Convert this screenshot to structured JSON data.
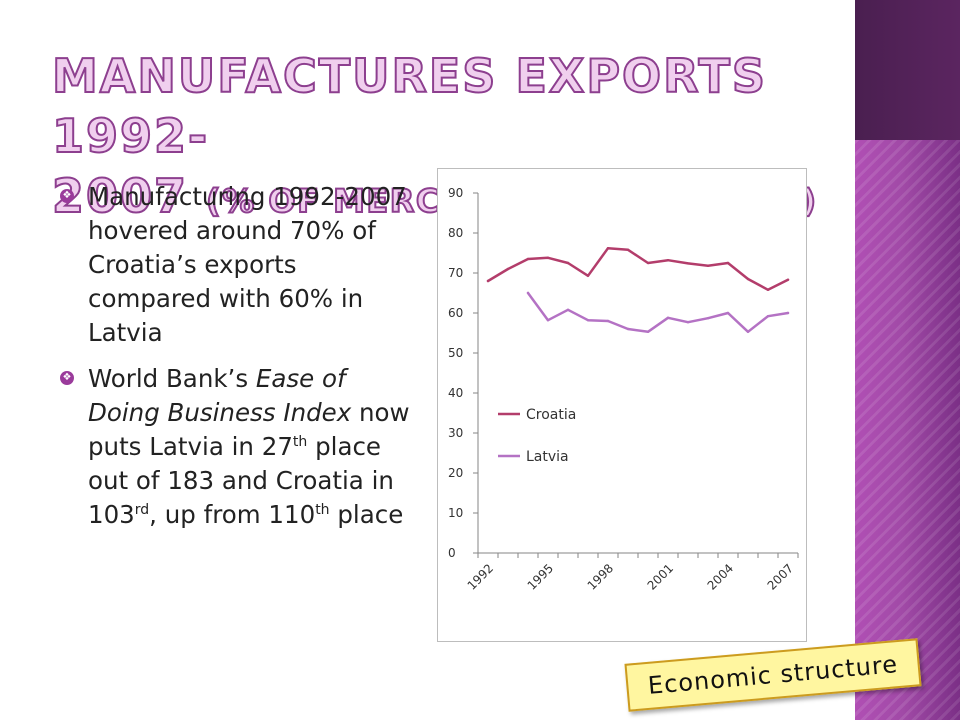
{
  "slide": {
    "title_line1": "Manufactures exports 1992-",
    "title_line2_year": "2007",
    "title_line2_paren": "(% of merchandise exports)",
    "bullets": [
      {
        "text": "Manufacturing 1992-2007 hovered around 70% of Croatia’s exports compared with 60% in Latvia"
      },
      {
        "part1": "World Bank’s ",
        "italic": "Ease of Doing Business Index",
        "part2": " now puts Latvia in 27",
        "sup1": "th",
        "part3": " place out of 183 and Croatia in 103",
        "sup2": "rd",
        "part4": ", up from 110",
        "sup3": "th",
        "part5": " place"
      }
    ],
    "badge": "Economic structure",
    "colors": {
      "title_fill": "#f0cfee",
      "title_stroke": "#8d3f8f",
      "bullet_marker": "#9a3b9b",
      "croatia": "#b33d6b",
      "latvia": "#b472c4",
      "badge_fill": "#fff6a0",
      "badge_border": "#cc9b1f"
    }
  },
  "chart_data": {
    "type": "line",
    "x": [
      1992,
      1993,
      1994,
      1995,
      1996,
      1997,
      1998,
      1999,
      2000,
      2001,
      2002,
      2003,
      2004,
      2005,
      2006,
      2007
    ],
    "xticks": [
      "1992",
      "1995",
      "1998",
      "2001",
      "2004",
      "2007"
    ],
    "ylim": [
      0,
      90
    ],
    "yticks": [
      "0",
      "10",
      "20",
      "30",
      "40",
      "50",
      "60",
      "70",
      "80",
      "90"
    ],
    "grid": false,
    "legend_position": "middle-left",
    "series": [
      {
        "name": "Croatia",
        "color": "#b33d6b",
        "values": [
          68,
          71,
          73.5,
          73.8,
          72.5,
          69.3,
          76.2,
          75.8,
          72.5,
          73.2,
          72.4,
          71.8,
          72.5,
          68.5,
          65.8,
          68.3
        ]
      },
      {
        "name": "Latvia",
        "color": "#b472c4",
        "values": [
          null,
          null,
          65,
          58.2,
          60.8,
          58.2,
          58,
          56,
          55.3,
          58.8,
          57.7,
          58.7,
          60,
          55.3,
          59.2,
          60
        ]
      }
    ]
  }
}
